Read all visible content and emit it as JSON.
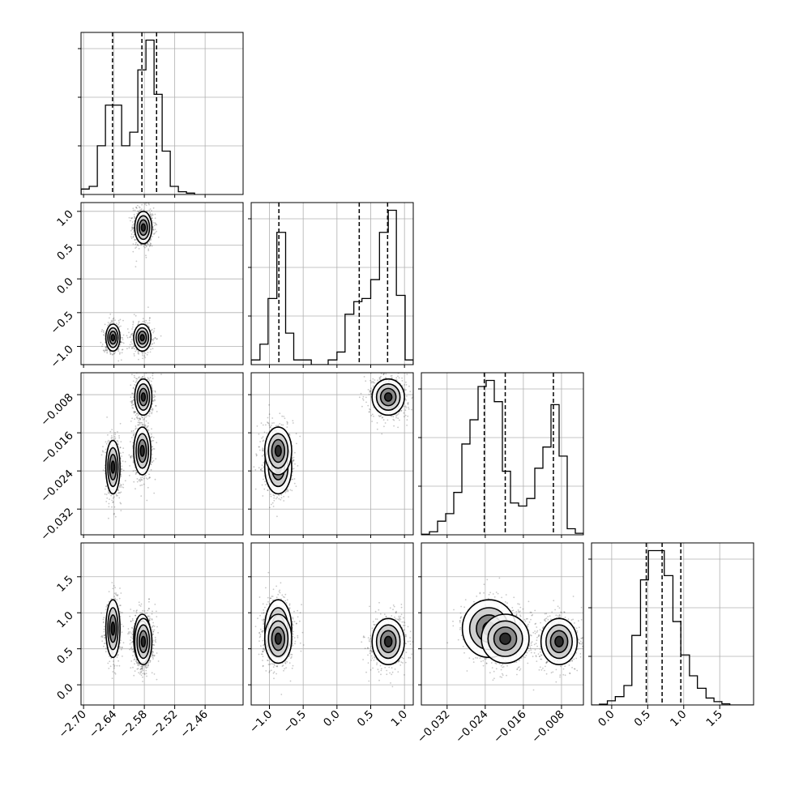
{
  "chart_data": {
    "type": "corner",
    "grid": true,
    "parameters": [
      {
        "range": [
          -2.705,
          -2.385
        ],
        "ticks": [
          -2.7,
          -2.64,
          -2.58,
          -2.52,
          -2.46
        ],
        "tick_labels": [
          "−2.70",
          "−2.64",
          "−2.58",
          "−2.52",
          "−2.46"
        ],
        "quantiles": [
          -2.6428,
          -2.5848,
          -2.5558
        ],
        "histogram": {
          "bin_edges": [
            -2.7048,
            -2.6888,
            -2.6728,
            -2.6568,
            -2.6408,
            -2.6248,
            -2.6088,
            -2.5928,
            -2.5768,
            -2.5608,
            -2.5448,
            -2.5288,
            -2.5128,
            -2.4968,
            -2.4808
          ],
          "counts": [
            0.2,
            0.3,
            1.8,
            3.3,
            3.3,
            1.8,
            2.3,
            4.6,
            5.7,
            3.7,
            1.6,
            0.3,
            0.1,
            0.05
          ]
        }
      },
      {
        "range": [
          -1.27,
          1.13
        ],
        "ticks": [
          -1.0,
          -0.5,
          0.0,
          0.5,
          1.0
        ],
        "tick_labels": [
          "−1.0",
          "−0.5",
          "0.0",
          "0.5",
          "1.0"
        ],
        "quantiles": [
          -0.86,
          0.33,
          0.75
        ],
        "histogram": {
          "bin_edges": [
            -1.27,
            -1.14,
            -1.02,
            -0.89,
            -0.76,
            -0.64,
            -0.51,
            -0.38,
            -0.26,
            -0.13,
            0.0,
            0.12,
            0.25,
            0.37,
            0.5,
            0.63,
            0.76,
            0.88,
            1.01,
            1.13
          ],
          "counts": [
            0.15,
            0.65,
            2.1,
            4.2,
            1.0,
            0.15,
            0.15,
            0.0,
            0.0,
            0.15,
            0.4,
            1.6,
            2.0,
            2.1,
            2.7,
            4.2,
            4.9,
            2.2,
            0.15
          ]
        }
      },
      {
        "range": [
          -0.0374,
          -0.0034
        ],
        "ticks": [
          -0.032,
          -0.024,
          -0.016,
          -0.008
        ],
        "tick_labels": [
          "−0.032",
          "−0.024",
          "−0.016",
          "−0.008"
        ],
        "quantiles": [
          -0.0242,
          -0.0198,
          -0.0097
        ],
        "histogram": {
          "bin_edges": [
            -0.0374,
            -0.0357,
            -0.034,
            -0.0323,
            -0.0306,
            -0.0289,
            -0.0272,
            -0.0255,
            -0.0238,
            -0.0221,
            -0.0204,
            -0.0187,
            -0.017,
            -0.0153,
            -0.0136,
            -0.0119,
            -0.0102,
            -0.0085,
            -0.0068,
            -0.0051,
            -0.0034
          ],
          "counts": [
            0.02,
            0.1,
            0.45,
            0.7,
            1.4,
            3.0,
            3.8,
            4.9,
            5.1,
            4.4,
            2.1,
            1.05,
            0.95,
            1.2,
            2.2,
            2.9,
            4.3,
            2.6,
            0.2,
            0.05
          ]
        }
      },
      {
        "range": [
          -0.28,
          1.97
        ],
        "ticks": [
          0.0,
          0.5,
          1.0,
          1.5
        ],
        "tick_labels": [
          "0.0",
          "0.5",
          "1.0",
          "1.5"
        ],
        "quantiles": [
          0.48,
          0.7,
          0.96
        ],
        "histogram": {
          "bin_edges": [
            -0.28,
            -0.17,
            -0.06,
            0.05,
            0.17,
            0.28,
            0.4,
            0.51,
            0.62,
            0.73,
            0.85,
            0.96,
            1.08,
            1.19,
            1.31,
            1.42,
            1.53,
            1.64,
            1.76,
            1.87,
            1.97
          ],
          "counts": [
            0.0,
            0.03,
            0.15,
            0.3,
            0.7,
            2.5,
            4.5,
            5.55,
            5.55,
            4.65,
            3.0,
            1.8,
            1.05,
            0.6,
            0.25,
            0.12,
            0.04,
            0.0,
            0.0,
            0.0
          ]
        }
      }
    ],
    "modes": [
      {
        "means": [
          -2.642,
          -0.87,
          -0.0232,
          0.78
        ],
        "sds": [
          0.007,
          0.1,
          0.0028,
          0.2
        ],
        "weight": 0.3
      },
      {
        "means": [
          -2.584,
          -0.87,
          -0.0198,
          0.64
        ],
        "sds": [
          0.0085,
          0.1,
          0.0025,
          0.17
        ],
        "weight": 0.3
      },
      {
        "means": [
          -2.582,
          0.76,
          -0.0085,
          0.6
        ],
        "sds": [
          0.0085,
          0.12,
          0.0019,
          0.16
        ],
        "weight": 0.4
      }
    ]
  }
}
